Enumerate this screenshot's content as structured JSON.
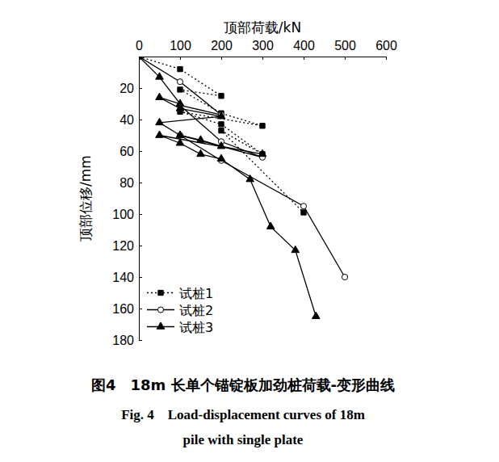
{
  "chart_data": {
    "type": "line",
    "title": "图4　18m 长单个锚锭板加劲桩荷载-变形曲线",
    "subtitle": [
      "Fig. 4　Load-displacement curves of 18m",
      "pile with single plate"
    ],
    "x_label": "顶部荷载/kN",
    "y_label": "顶部位移/mm",
    "xlim": [
      0,
      600
    ],
    "xticks": [
      0,
      100,
      200,
      300,
      400,
      500,
      600
    ],
    "ylim": [
      0,
      180
    ],
    "yticks": [
      20,
      40,
      60,
      80,
      100,
      120,
      140,
      160,
      180
    ],
    "grid": false,
    "legend": "lower left",
    "series": [
      {
        "name": "试桩1",
        "color": "#000000",
        "marker": "square",
        "line_style": "dotted",
        "x": [
          0,
          100,
          200,
          100,
          200,
          300,
          100,
          200,
          300,
          200,
          400
        ],
        "values": [
          0,
          8,
          25,
          21,
          36,
          44,
          35,
          43,
          62,
          47,
          99
        ]
      },
      {
        "name": "试桩2",
        "color": "#000000",
        "marker": "circle-open",
        "line_style": "solid",
        "x": [
          0,
          100,
          200,
          100,
          200,
          300,
          100,
          200,
          400,
          500
        ],
        "values": [
          0,
          16,
          37,
          31,
          54,
          64,
          50,
          66,
          95,
          140
        ]
      },
      {
        "name": "试桩3",
        "color": "#000000",
        "marker": "triangle",
        "line_style": "solid",
        "x": [
          0,
          50,
          100,
          50,
          100,
          200,
          50,
          100,
          150,
          200,
          300,
          50,
          100,
          150,
          200,
          270,
          320,
          380,
          430
        ],
        "values": [
          0,
          13,
          30,
          26,
          33,
          38,
          42,
          50,
          53,
          57,
          62,
          50,
          55,
          62,
          65,
          78,
          108,
          123,
          165
        ]
      }
    ]
  }
}
